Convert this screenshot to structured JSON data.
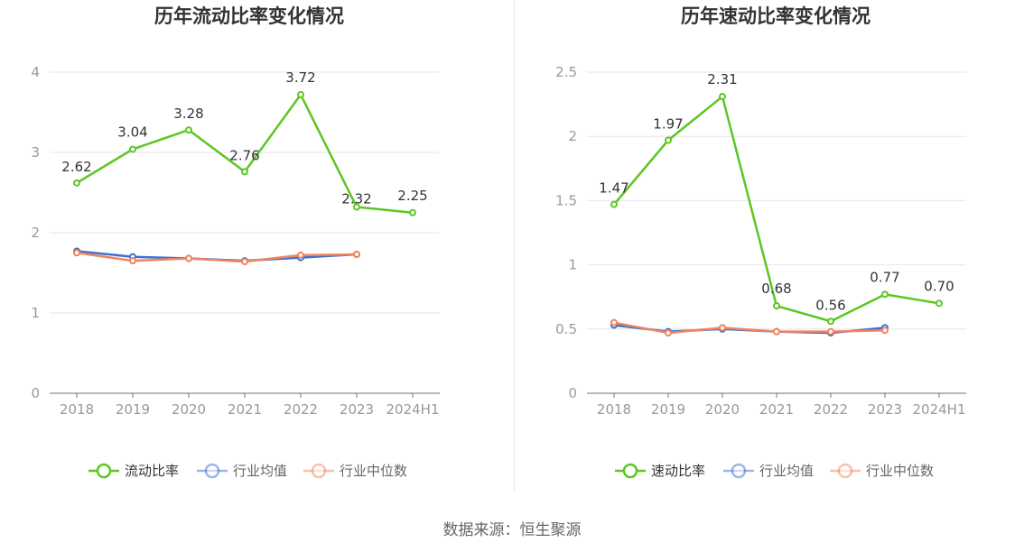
{
  "source": "数据来源：恒生聚源",
  "chart_data": [
    {
      "type": "line",
      "title": "历年流动比率变化情况",
      "categories": [
        "2018",
        "2019",
        "2020",
        "2021",
        "2022",
        "2023",
        "2024H1"
      ],
      "ylim": [
        0,
        4
      ],
      "yticks": [
        "0",
        "1",
        "2",
        "3",
        "4"
      ],
      "grid": true,
      "legend_position": "bottom",
      "series": [
        {
          "name": "流动比率",
          "color": "#5cc623",
          "values": [
            2.62,
            3.04,
            3.28,
            2.76,
            3.72,
            2.32,
            2.25
          ],
          "labels": [
            "2.62",
            "3.04",
            "3.28",
            "2.76",
            "3.72",
            "2.32",
            "2.25"
          ]
        },
        {
          "name": "行业均值",
          "color": "#3f6fd1",
          "values": [
            1.77,
            1.7,
            1.68,
            1.65,
            1.69,
            1.73,
            null
          ]
        },
        {
          "name": "行业中位数",
          "color": "#f0845d",
          "values": [
            1.75,
            1.65,
            1.68,
            1.64,
            1.72,
            1.73,
            null
          ]
        }
      ]
    },
    {
      "type": "line",
      "title": "历年速动比率变化情况",
      "categories": [
        "2018",
        "2019",
        "2020",
        "2021",
        "2022",
        "2023",
        "2024H1"
      ],
      "ylim": [
        0,
        2.5
      ],
      "yticks": [
        "0",
        "0.5",
        "1",
        "1.5",
        "2",
        "2.5"
      ],
      "grid": true,
      "legend_position": "bottom",
      "series": [
        {
          "name": "速动比率",
          "color": "#5cc623",
          "values": [
            1.47,
            1.97,
            2.31,
            0.68,
            0.56,
            0.77,
            0.7
          ],
          "labels": [
            "1.47",
            "1.97",
            "2.31",
            "0.68",
            "0.56",
            "0.77",
            "0.70"
          ]
        },
        {
          "name": "行业均值",
          "color": "#3f6fd1",
          "values": [
            0.53,
            0.48,
            0.5,
            0.48,
            0.47,
            0.51,
            null
          ]
        },
        {
          "name": "行业中位数",
          "color": "#f0845d",
          "values": [
            0.55,
            0.47,
            0.51,
            0.48,
            0.48,
            0.49,
            null
          ]
        }
      ]
    }
  ]
}
